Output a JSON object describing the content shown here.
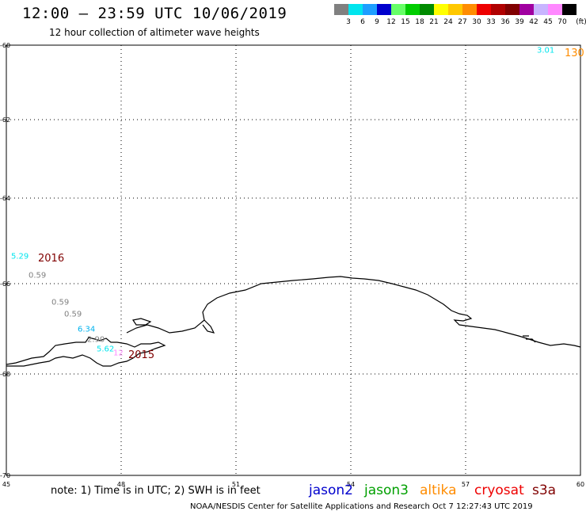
{
  "header": {
    "title": "12:00 – 23:59 UTC 10/06/2019",
    "subtitle": "12 hour collection of altimeter wave heights"
  },
  "legend": {
    "unit": "(ft)",
    "bins": [
      {
        "label": "3",
        "color": "#808080"
      },
      {
        "label": "6",
        "color": "#00e5ee"
      },
      {
        "label": "9",
        "color": "#1e9eff"
      },
      {
        "label": "12",
        "color": "#0000cd"
      },
      {
        "label": "15",
        "color": "#66ff66"
      },
      {
        "label": "18",
        "color": "#00cd00"
      },
      {
        "label": "21",
        "color": "#008b00"
      },
      {
        "label": "24",
        "color": "#ffff00"
      },
      {
        "label": "27",
        "color": "#ffc800"
      },
      {
        "label": "30",
        "color": "#ff8c00"
      },
      {
        "label": "33",
        "color": "#ee0000"
      },
      {
        "label": "36",
        "color": "#b00000"
      },
      {
        "label": "39",
        "color": "#800000"
      },
      {
        "label": "42",
        "color": "#a000a0"
      },
      {
        "label": "45",
        "color": "#c8b4ff"
      },
      {
        "label": "70",
        "color": "#ff88ff"
      },
      {
        "label": "",
        "color": "#000000"
      }
    ]
  },
  "axes": {
    "y_ticks": [
      "-60",
      "-62",
      "-64",
      "-66",
      "-68",
      "-70"
    ],
    "x_ticks": [
      "45",
      "48",
      "51",
      "54",
      "57",
      "60"
    ]
  },
  "observations": [
    {
      "text": "3.01",
      "color": "#00e5ee",
      "kind": "value"
    },
    {
      "text": "130",
      "color": "#ff8c00",
      "kind": "id"
    },
    {
      "text": "5.29",
      "color": "#00e5ee",
      "kind": "value"
    },
    {
      "text": "2016",
      "color": "#800000",
      "kind": "id"
    },
    {
      "text": "0.59",
      "color": "#808080",
      "kind": "value"
    },
    {
      "text": "0.59",
      "color": "#808080",
      "kind": "value"
    },
    {
      "text": "0.59",
      "color": "#808080",
      "kind": "value"
    },
    {
      "text": "6.34",
      "color": "#00b2ee",
      "kind": "value"
    },
    {
      "text": "2.90",
      "color": "#808080",
      "kind": "value"
    },
    {
      "text": "5.62",
      "color": "#00e5ee",
      "kind": "value"
    },
    {
      "text": "12",
      "color": "#ff88ff",
      "kind": "value"
    },
    {
      "text": "2015",
      "color": "#800000",
      "kind": "id"
    }
  ],
  "note": "note: 1) Time is in UTC; 2) SWH is in feet",
  "satellites": [
    {
      "name": "jason2",
      "color": "#0000cd"
    },
    {
      "name": "jason3",
      "color": "#00a000"
    },
    {
      "name": "altika",
      "color": "#ff8c00"
    },
    {
      "name": "cryosat",
      "color": "#ee0000"
    },
    {
      "name": "s3a",
      "color": "#800000"
    }
  ],
  "footer": "NOAA/NESDIS Center for Satellite Applications and Research     Oct  7 12:27:43 UTC 2019"
}
